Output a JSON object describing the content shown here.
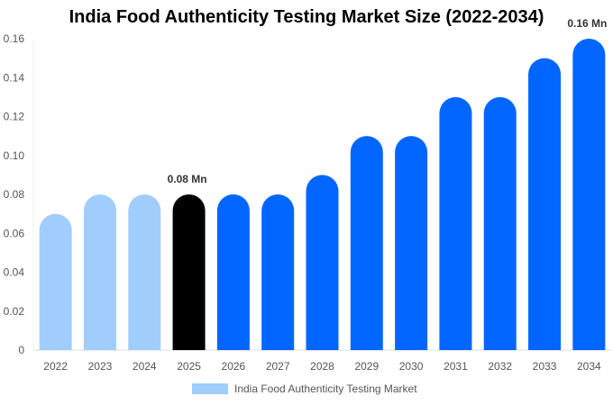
{
  "chart_data": {
    "type": "bar",
    "title": "India Food Authenticity Testing Market  Size (2022-2034)",
    "categories": [
      "2022",
      "2023",
      "2024",
      "2025",
      "2026",
      "2027",
      "2028",
      "2029",
      "2030",
      "2031",
      "2032",
      "2033",
      "2034"
    ],
    "series": [
      {
        "name": "India Food Authenticity Testing Market",
        "values": [
          0.07,
          0.08,
          0.08,
          0.08,
          0.08,
          0.08,
          0.09,
          0.11,
          0.11,
          0.13,
          0.13,
          0.15,
          0.16
        ]
      }
    ],
    "bar_colors": [
      "#a0cdfc",
      "#a0cdfc",
      "#a0cdfc",
      "#000000",
      "#0066ff",
      "#0066ff",
      "#0066ff",
      "#0066ff",
      "#0066ff",
      "#0066ff",
      "#0066ff",
      "#0066ff",
      "#0066ff"
    ],
    "data_labels": {
      "2025": "0.08 Mn",
      "2034": "0.16 Mn"
    },
    "yticks": [
      "0",
      "0.02",
      "0.04",
      "0.06",
      "0.08",
      "0.10",
      "0.12",
      "0.14",
      "0.16"
    ],
    "ylim": [
      0,
      0.16
    ],
    "xlabel": "",
    "ylabel": "",
    "grid": false,
    "legend_position": "bottom",
    "legend_color": "#a0cdfc"
  }
}
